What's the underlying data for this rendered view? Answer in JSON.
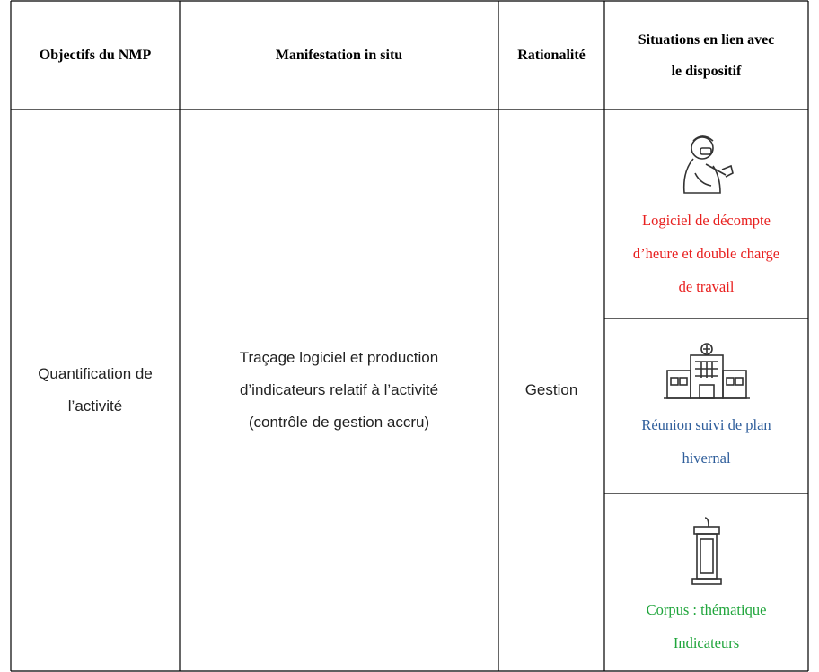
{
  "table": {
    "headers": [
      [
        "Objectifs du NMP"
      ],
      [
        "Manifestation in situ"
      ],
      [
        "Rationalité"
      ],
      [
        "Situations en lien avec",
        "le dispositif"
      ]
    ],
    "row": {
      "objective": [
        "Quantification de",
        "l’activité"
      ],
      "manifestation": [
        "Traçage logiciel et production",
        "d’indicateurs relatif à l’activité",
        "(contrôle de gestion accru)"
      ],
      "rationality": [
        "Gestion"
      ],
      "situations": [
        {
          "lines": [
            "Logiciel de décompte",
            "d’heure et double charge",
            "de travail"
          ],
          "color": "#e8201f"
        },
        {
          "lines": [
            "Réunion suivi de plan",
            "hivernal"
          ],
          "color": "#2f5e9b"
        },
        {
          "lines": [
            "Corpus : thématique",
            "Indicateurs"
          ],
          "color": "#1fa53b"
        }
      ]
    }
  }
}
